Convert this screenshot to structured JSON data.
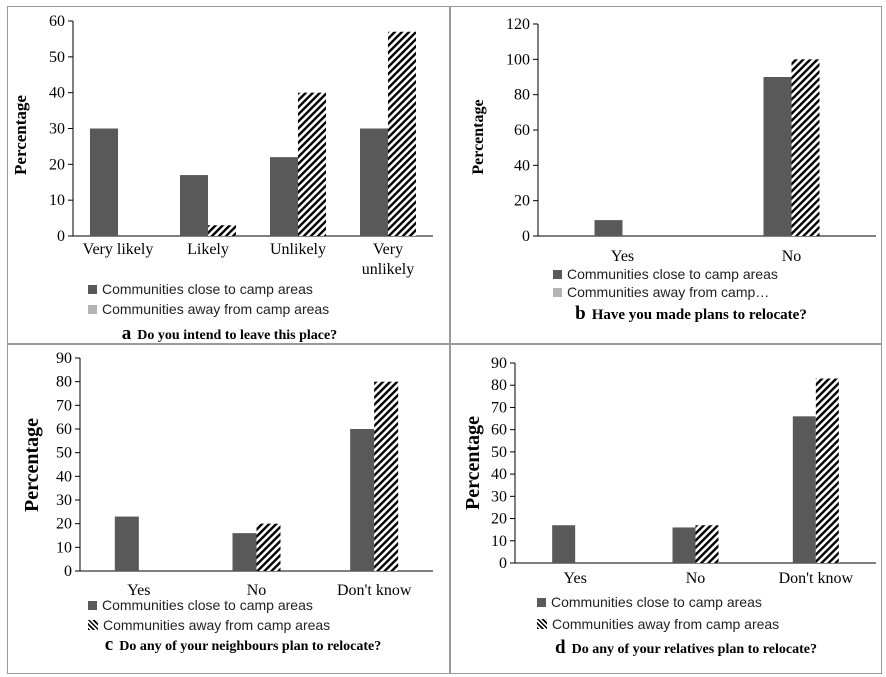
{
  "colors": {
    "close": "#595959",
    "away_legend": "#b3b3b3",
    "hatch": "#000000"
  },
  "panels": [
    {
      "caption": {
        "letter": "a",
        "text": "Do you intend to leave this place?"
      },
      "legend": [
        "Communities close to camp areas",
        "Communities away from camp areas"
      ],
      "legend_styles": [
        "dark",
        "light"
      ]
    },
    {
      "caption": {
        "letter": "b",
        "text": "Have you made plans to relocate?"
      },
      "legend": [
        "Communities close to camp areas",
        "Communities away from camp…"
      ],
      "legend_styles": [
        "dark",
        "light"
      ]
    },
    {
      "caption": {
        "letter": "c",
        "text": "Do any of your neighbours plan to relocate?"
      },
      "legend": [
        "Communities close to camp areas",
        "Communities away from camp areas"
      ],
      "legend_styles": [
        "dark",
        "hatch"
      ]
    },
    {
      "caption": {
        "letter": "d",
        "text": "Do any of your relatives plan to relocate?"
      },
      "legend": [
        "Communities close to camp areas",
        "Communities away from camp areas"
      ],
      "legend_styles": [
        "dark",
        "hatch"
      ]
    }
  ],
  "chart_data": [
    {
      "type": "bar",
      "ylabel": "Percentage",
      "ylim": [
        0,
        60
      ],
      "yticks": [
        0,
        10,
        20,
        30,
        40,
        50,
        60
      ],
      "categories": [
        [
          "Very likely"
        ],
        [
          "Likely"
        ],
        [
          "Unlikely"
        ],
        [
          "Very",
          "unlikely"
        ]
      ],
      "series": [
        {
          "name": "Communities close to camp areas",
          "values": [
            30,
            17,
            22,
            30
          ]
        },
        {
          "name": "Communities away from camp areas",
          "values": [
            0,
            3,
            40,
            57
          ]
        }
      ]
    },
    {
      "type": "bar",
      "ylabel": "Percentage",
      "ylim": [
        0,
        120
      ],
      "yticks": [
        0,
        20,
        40,
        60,
        80,
        100,
        120
      ],
      "categories": [
        [
          "Yes"
        ],
        [
          "No"
        ]
      ],
      "series": [
        {
          "name": "Communities close to camp areas",
          "values": [
            9,
            90
          ]
        },
        {
          "name": "Communities away from camp areas",
          "values": [
            0,
            100
          ]
        }
      ]
    },
    {
      "type": "bar",
      "ylabel": "Percentage",
      "ylim": [
        0,
        90
      ],
      "yticks": [
        0,
        10,
        20,
        30,
        40,
        50,
        60,
        70,
        80,
        90
      ],
      "categories": [
        [
          "Yes"
        ],
        [
          "No"
        ],
        [
          "Don't know"
        ]
      ],
      "series": [
        {
          "name": "Communities close to camp areas",
          "values": [
            23,
            16,
            60
          ]
        },
        {
          "name": "Communities away from camp areas",
          "values": [
            0,
            20,
            80
          ]
        }
      ]
    },
    {
      "type": "bar",
      "ylabel": "Percentage",
      "ylim": [
        0,
        90
      ],
      "yticks": [
        0,
        10,
        20,
        30,
        40,
        50,
        60,
        70,
        80,
        90
      ],
      "categories": [
        [
          "Yes"
        ],
        [
          "No"
        ],
        [
          "Don't know"
        ]
      ],
      "series": [
        {
          "name": "Communities close to camp areas",
          "values": [
            17,
            16,
            66
          ]
        },
        {
          "name": "Communities away from camp areas",
          "values": [
            0,
            17,
            83
          ]
        }
      ]
    }
  ]
}
